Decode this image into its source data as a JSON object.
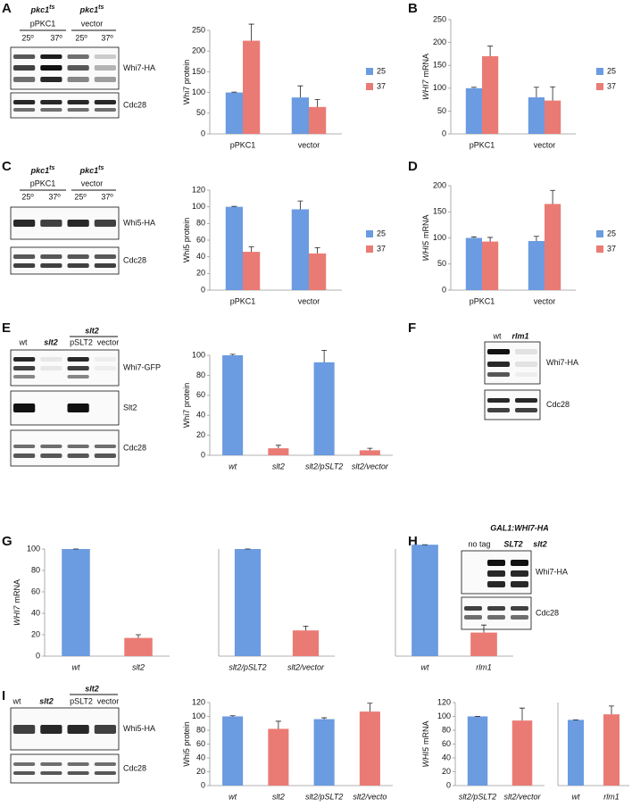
{
  "panel_letters": [
    "A",
    "B",
    "C",
    "D",
    "E",
    "F",
    "G",
    "H",
    "I"
  ],
  "blots": {
    "A": {
      "strain": "pkc1",
      "allele": "ts",
      "groups": [
        "pPKC1",
        "vector"
      ],
      "lanes": [
        "25º",
        "37º",
        "25º",
        "37º"
      ],
      "bands": [
        "Whi7-HA",
        "Cdc28"
      ]
    },
    "C": {
      "strain": "pkc1",
      "allele": "ts",
      "groups": [
        "pPKC1",
        "vector"
      ],
      "lanes": [
        "25º",
        "37º",
        "25º",
        "37º"
      ],
      "bands": [
        "Whi5-HA",
        "Cdc28"
      ]
    },
    "E": {
      "lanes": [
        "wt",
        "slt2"
      ],
      "group_strain": "slt2",
      "group_lanes": [
        "pSLT2",
        "vector"
      ],
      "bands": [
        "Whi7-GFP",
        "Slt2",
        "Cdc28"
      ]
    },
    "F": {
      "lanes": [
        "wt",
        "rlm1"
      ],
      "bands": [
        "Whi7-HA",
        "Cdc28"
      ]
    },
    "H": {
      "construct": "GAL1:WHI7-HA",
      "lanes": [
        "no tag",
        "SLT2",
        "slt2"
      ],
      "bands": [
        "Whi7-HA",
        "Cdc28"
      ]
    },
    "I": {
      "lanes": [
        "wt",
        "slt2"
      ],
      "group_strain": "slt2",
      "group_lanes": [
        "pSLT2",
        "vector"
      ],
      "bands": [
        "Whi5-HA",
        "Cdc28"
      ]
    }
  },
  "chart_data": [
    {
      "type": "bar",
      "ylabel": "Whi7 protein",
      "categories": [
        "pPKC1",
        "vector"
      ],
      "ylim": [
        0,
        250
      ],
      "yticks": [
        0,
        50,
        100,
        150,
        200,
        250
      ],
      "series": [
        {
          "name": "25",
          "color": "#6b9be0",
          "values": [
            100,
            88
          ],
          "errors": [
            1,
            28
          ]
        },
        {
          "name": "37",
          "color": "#ea7b74",
          "values": [
            225,
            65
          ],
          "errors": [
            40,
            18
          ]
        }
      ]
    },
    {
      "type": "bar",
      "ylabel_gene": "WHI7",
      "ylabel": "mRNA",
      "categories": [
        "pPKC1",
        "vector"
      ],
      "ylim": [
        0,
        250
      ],
      "yticks": [
        0,
        50,
        100,
        150,
        200,
        250
      ],
      "series": [
        {
          "name": "25",
          "color": "#6b9be0",
          "values": [
            100,
            80
          ],
          "errors": [
            2,
            22
          ]
        },
        {
          "name": "37",
          "color": "#ea7b74",
          "values": [
            170,
            73
          ],
          "errors": [
            22,
            30
          ]
        }
      ]
    },
    {
      "type": "bar",
      "ylabel": "Whi5 protein",
      "categories": [
        "pPKC1",
        "vector"
      ],
      "ylim": [
        0,
        120
      ],
      "yticks": [
        0,
        20,
        40,
        60,
        80,
        100,
        120
      ],
      "series": [
        {
          "name": "25",
          "color": "#6b9be0",
          "values": [
            100,
            97
          ],
          "errors": [
            0.5,
            10
          ]
        },
        {
          "name": "37",
          "color": "#ea7b74",
          "values": [
            46,
            44
          ],
          "errors": [
            6,
            7
          ]
        }
      ]
    },
    {
      "type": "bar",
      "ylabel_gene": "WHI5",
      "ylabel": "mRNA",
      "categories": [
        "pPKC1",
        "vector"
      ],
      "ylim": [
        0,
        200
      ],
      "yticks": [
        0,
        50,
        100,
        150,
        200
      ],
      "series": [
        {
          "name": "25",
          "color": "#6b9be0",
          "values": [
            100,
            94
          ],
          "errors": [
            2,
            9
          ]
        },
        {
          "name": "37",
          "color": "#ea7b74",
          "values": [
            93,
            165
          ],
          "errors": [
            8,
            26
          ]
        }
      ]
    },
    {
      "type": "bar",
      "ylabel": "Whi7 protein",
      "italic_categories": true,
      "categories": [
        "wt",
        "slt2",
        "slt2/pSLT2",
        "slt2/vector"
      ],
      "ylim": [
        0,
        100
      ],
      "yticks": [
        0,
        20,
        40,
        60,
        80,
        100
      ],
      "values": [
        100,
        7,
        93,
        5
      ],
      "errors": [
        1,
        3,
        12,
        2
      ],
      "colors": [
        "#6b9be0",
        "#ea7b74",
        "#6b9be0",
        "#ea7b74"
      ]
    },
    {
      "type": "bar",
      "ylabel_gene": "WHI7",
      "ylabel": "mRNA",
      "italic_categories": true,
      "categories": [
        "wt",
        "slt2"
      ],
      "ylim": [
        0,
        100
      ],
      "yticks": [
        0,
        20,
        40,
        60,
        80,
        100
      ],
      "values": [
        100,
        17
      ],
      "errors": [
        0,
        3
      ],
      "colors": [
        "#6b9be0",
        "#ea7b74"
      ]
    },
    {
      "type": "bar",
      "italic_categories": true,
      "categories": [
        "slt2/pSLT2",
        "slt2/vector"
      ],
      "ylim": [
        0,
        100
      ],
      "values": [
        100,
        24
      ],
      "errors": [
        0,
        4
      ],
      "colors": [
        "#6b9be0",
        "#ea7b74"
      ]
    },
    {
      "type": "bar",
      "italic_categories": true,
      "categories": [
        "wt",
        "rlm1"
      ],
      "ylim": [
        0,
        100
      ],
      "values": [
        104,
        22
      ],
      "errors": [
        0,
        7
      ],
      "colors": [
        "#6b9be0",
        "#ea7b74"
      ]
    },
    {
      "type": "bar",
      "ylabel": "Whi5 protein",
      "italic_categories": true,
      "categories": [
        "wt",
        "slt2",
        "slt2/pSLT2",
        "slt2/vecto"
      ],
      "ylim": [
        0,
        120
      ],
      "yticks": [
        0,
        20,
        40,
        60,
        80,
        100,
        120
      ],
      "values": [
        100,
        82,
        96,
        107
      ],
      "errors": [
        1,
        11,
        2,
        12
      ],
      "colors": [
        "#6b9be0",
        "#ea7b74",
        "#6b9be0",
        "#ea7b74"
      ]
    },
    {
      "type": "bar",
      "ylabel_gene": "WHI5",
      "ylabel": "mRNA",
      "italic_categories": true,
      "categories": [
        "slt2/pSLT2",
        "slt2/vector"
      ],
      "ylim": [
        0,
        120
      ],
      "yticks": [
        0,
        20,
        40,
        60,
        80,
        100,
        120
      ],
      "values": [
        100,
        94
      ],
      "errors": [
        0,
        18
      ],
      "colors": [
        "#6b9be0",
        "#ea7b74"
      ]
    },
    {
      "type": "bar",
      "italic_categories": true,
      "categories": [
        "wt",
        "rlm1"
      ],
      "ylim": [
        0,
        120
      ],
      "values": [
        95,
        103
      ],
      "errors": [
        0,
        12
      ],
      "colors": [
        "#6b9be0",
        "#ea7b74"
      ]
    }
  ]
}
